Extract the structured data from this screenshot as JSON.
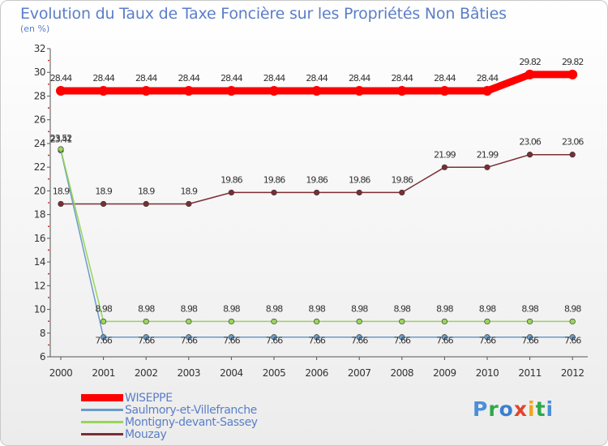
{
  "chart_data": {
    "type": "line",
    "title": "Evolution du Taux de Taxe Foncière sur les Propriétés Non Bâties",
    "ylabel": "(en %)",
    "xlabel": "",
    "x": [
      "2000",
      "2001",
      "2002",
      "2003",
      "2004",
      "2005",
      "2006",
      "2007",
      "2008",
      "2009",
      "2010",
      "2011",
      "2012"
    ],
    "ylim": [
      6,
      32
    ],
    "yticks": [
      6,
      8,
      10,
      12,
      14,
      16,
      18,
      20,
      22,
      24,
      26,
      28,
      30,
      32
    ],
    "grid": false,
    "series": [
      {
        "name": "WISEPPE",
        "color": "#ff0000",
        "values": [
          28.44,
          28.44,
          28.44,
          28.44,
          28.44,
          28.44,
          28.44,
          28.44,
          28.44,
          28.44,
          28.44,
          29.82,
          29.82
        ],
        "labels": [
          "28.44",
          "28.44",
          "28.44",
          "28.44",
          "28.44",
          "28.44",
          "28.44",
          "28.44",
          "28.44",
          "28.44",
          "28.44",
          "29.82",
          "29.82"
        ]
      },
      {
        "name": "Saulmory-et-Villefranche",
        "color": "#6b9bc9",
        "values": [
          23.41,
          7.66,
          7.66,
          7.66,
          7.66,
          7.66,
          7.66,
          7.66,
          7.66,
          7.66,
          7.66,
          7.66,
          7.66
        ],
        "labels": [
          "23.41",
          "7.66",
          "7.66",
          "7.66",
          "7.66",
          "7.66",
          "7.66",
          "7.66",
          "7.66",
          "7.66",
          "7.66",
          "7.66",
          "7.66"
        ]
      },
      {
        "name": "Montigny-devant-Sassey",
        "color": "#99d45a",
        "values": [
          23.52,
          8.98,
          8.98,
          8.98,
          8.98,
          8.98,
          8.98,
          8.98,
          8.98,
          8.98,
          8.98,
          8.98,
          8.98
        ],
        "labels": [
          "23.52",
          "8.98",
          "8.98",
          "8.98",
          "8.98",
          "8.98",
          "8.98",
          "8.98",
          "8.98",
          "8.98",
          "8.98",
          "8.98",
          "8.98"
        ]
      },
      {
        "name": "Mouzay",
        "color": "#7b2e35",
        "values": [
          18.9,
          18.9,
          18.9,
          18.9,
          19.86,
          19.86,
          19.86,
          19.86,
          19.86,
          21.99,
          21.99,
          23.06,
          23.06
        ],
        "labels": [
          "18.9",
          "18.9",
          "18.9",
          "18.9",
          "19.86",
          "19.86",
          "19.86",
          "19.86",
          "19.86",
          "21.99",
          "21.99",
          "23.06",
          "23.06"
        ]
      }
    ]
  },
  "logo": [
    "P",
    "r",
    "o",
    "x",
    "i",
    "t",
    "i"
  ]
}
